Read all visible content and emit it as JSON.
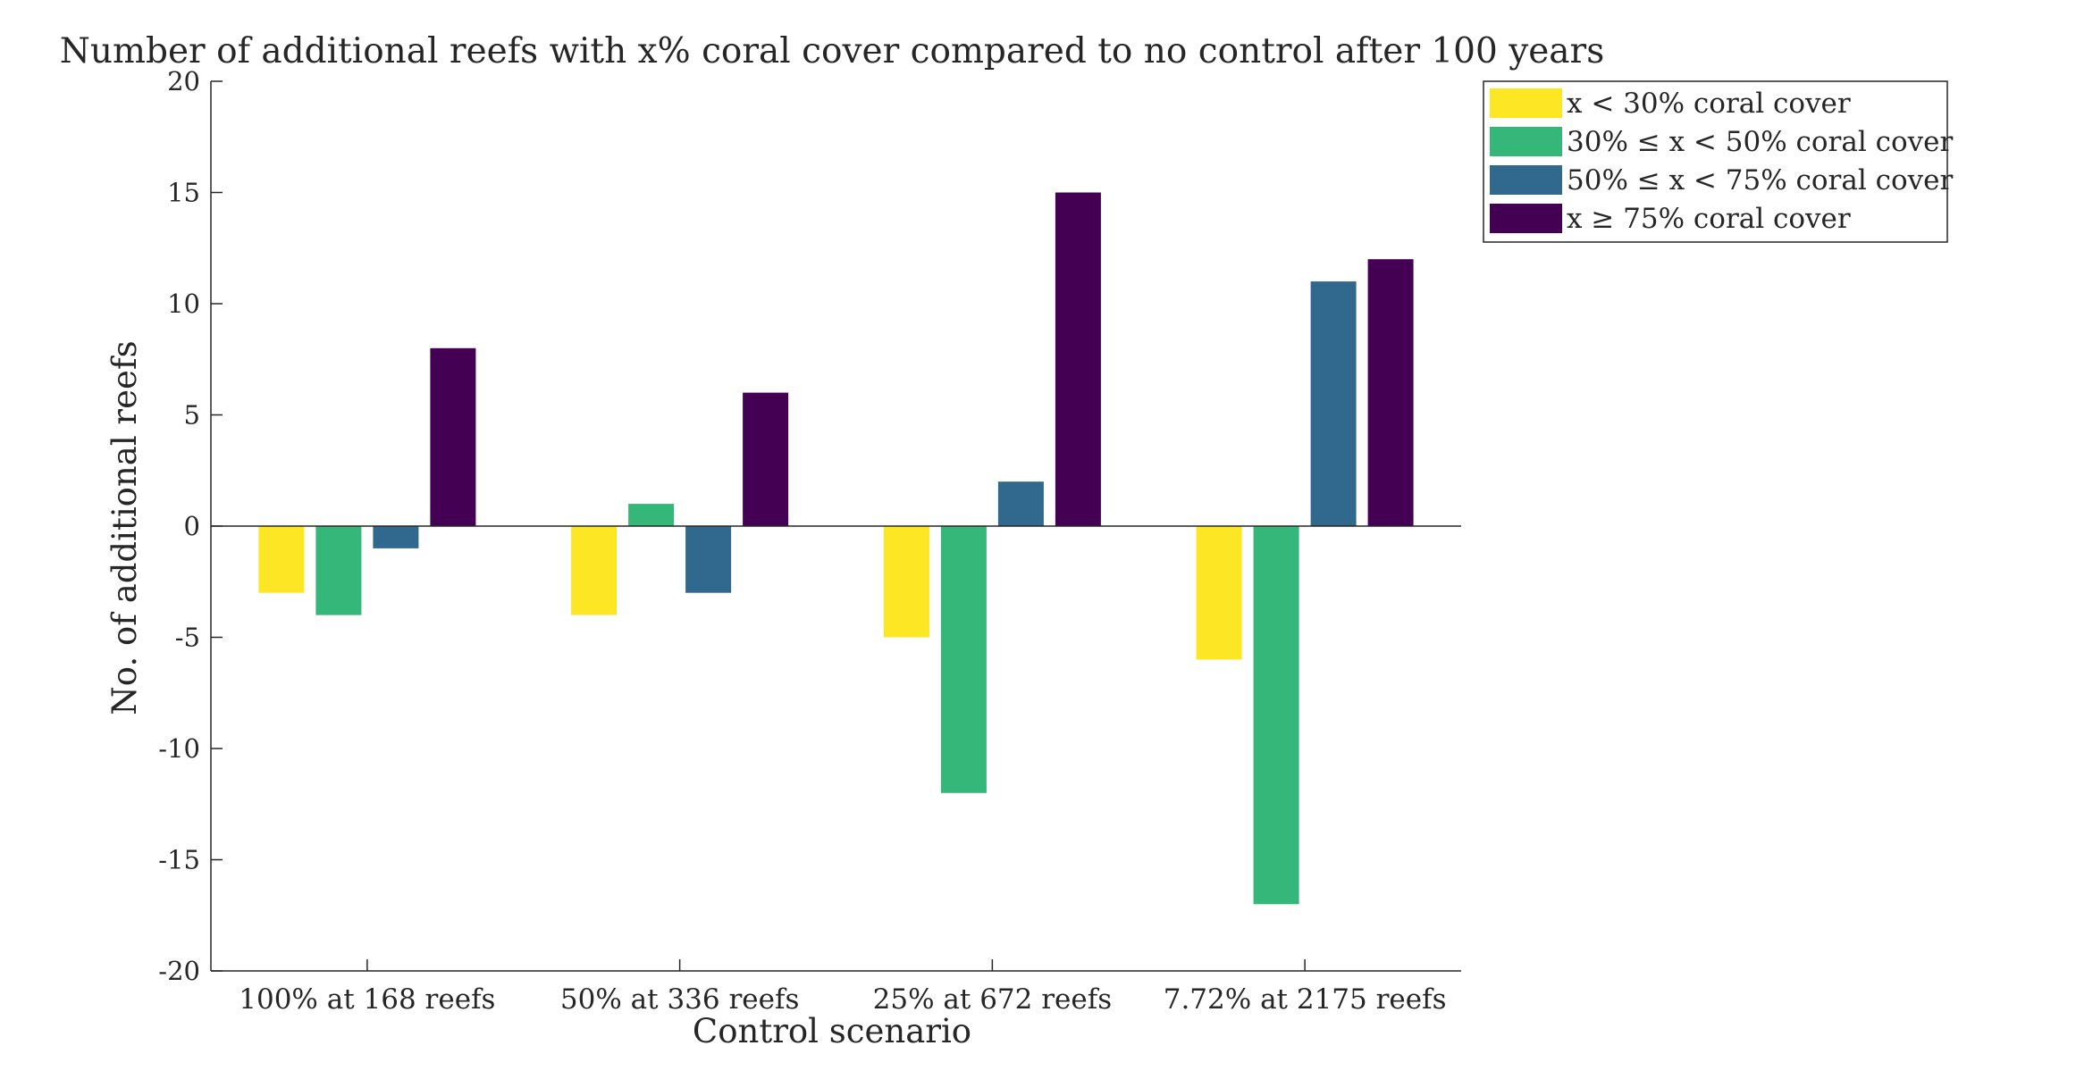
{
  "chart_data": {
    "type": "bar",
    "title": "Number of additional reefs with x% coral cover compared to no control after 100 years",
    "xlabel": "Control scenario",
    "ylabel": "No. of additional reefs",
    "ylim": [
      -20,
      20
    ],
    "yticks": [
      "-20",
      "-15",
      "-10",
      "-5",
      "0",
      "5",
      "10",
      "15",
      "20"
    ],
    "grid": false,
    "legend_position": "outside-top-right",
    "categories": [
      "100% at 168 reefs",
      "50% at 336 reefs",
      "25% at 672 reefs",
      "7.72% at 2175 reefs"
    ],
    "series": [
      {
        "name": "x < 30% coral cover",
        "color": "#FDE725",
        "values": [
          -3,
          -4,
          -5,
          -6
        ]
      },
      {
        "name": "30% ≤ x < 50% coral cover",
        "color": "#35B779",
        "values": [
          -4,
          1,
          -12,
          -17
        ]
      },
      {
        "name": "50% ≤ x < 75% coral cover",
        "color": "#31688E",
        "values": [
          -1,
          -3,
          2,
          11
        ]
      },
      {
        "name": "x ≥ 75% coral cover",
        "color": "#440154",
        "values": [
          8,
          6,
          15,
          12
        ]
      }
    ]
  }
}
